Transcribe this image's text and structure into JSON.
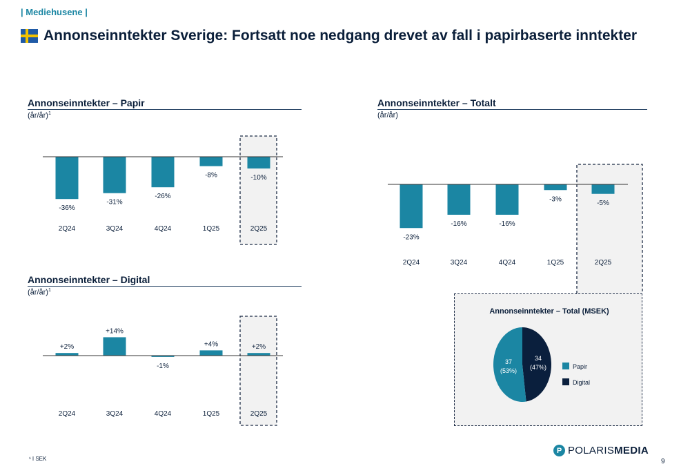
{
  "header": {
    "section_tag": "| Mediehusene |",
    "title": "Annonseinntekter Sverige: Fortsatt noe nedgang drevet av fall i papirbaserte inntekter",
    "flag_icon": "swedish-flag-icon"
  },
  "colors": {
    "bar": "#1b86a3",
    "digital": "#0a1f3d",
    "highlight_bg": "#f2f2f2"
  },
  "chart_data": [
    {
      "id": "papir",
      "type": "bar",
      "title": "Annonseinntekter – Papir",
      "subtitle": "(år/år)",
      "subtitle_sup": "1",
      "categories": [
        "2Q24",
        "3Q24",
        "4Q24",
        "1Q25",
        "2Q25"
      ],
      "values": [
        -36,
        -31,
        -26,
        -8,
        -10
      ],
      "labels": [
        "-36%",
        "-31%",
        "-26%",
        "-8%",
        "-10%"
      ],
      "highlight": "2Q25"
    },
    {
      "id": "digital",
      "type": "bar",
      "title": "Annonseinntekter – Digital",
      "subtitle": "(år/år)",
      "subtitle_sup": "1",
      "categories": [
        "2Q24",
        "3Q24",
        "4Q24",
        "1Q25",
        "2Q25"
      ],
      "values": [
        2,
        14,
        -1,
        4,
        2
      ],
      "labels": [
        "+2%",
        "+14%",
        "-1%",
        "+4%",
        "+2%"
      ],
      "highlight": "2Q25"
    },
    {
      "id": "totalt",
      "type": "bar",
      "title": "Annonseinntekter – Totalt",
      "subtitle": "(år/år)",
      "categories": [
        "2Q24",
        "3Q24",
        "4Q24",
        "1Q25",
        "2Q25"
      ],
      "values": [
        -23,
        -16,
        -16,
        -3,
        -5
      ],
      "labels": [
        "-23%",
        "-16%",
        "-16%",
        "-3%",
        "-5%"
      ],
      "highlight": "2Q25"
    },
    {
      "id": "total_msek",
      "type": "pie",
      "title": "Annonseinntekter – Total (MSEK)",
      "slices": [
        {
          "name": "Papir",
          "value": 37,
          "pct": "(53%)",
          "color": "#1b86a3"
        },
        {
          "name": "Digital",
          "value": 34,
          "pct": "(47%)",
          "color": "#0a1f3d"
        }
      ]
    }
  ],
  "footer": {
    "footnote": "¹ I SEK",
    "logo_icon": "polaris-logo-icon",
    "logo_part1": "POLARIS",
    "logo_part2": "MEDIA",
    "page_number": "9"
  }
}
